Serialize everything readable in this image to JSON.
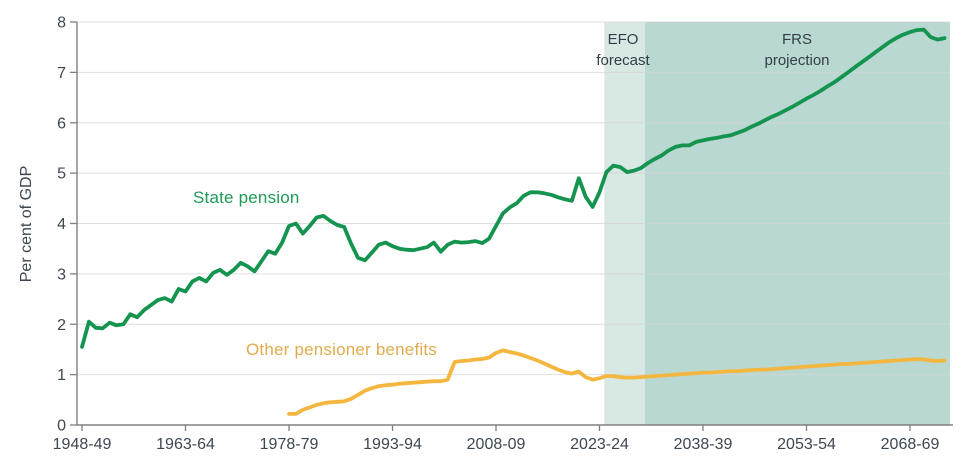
{
  "labels": {
    "y_axis_title": "Per cent of GDP",
    "state_pension": "State pension",
    "other_pensioner_benefits": "Other pensioner benefits",
    "efo_region": "EFO\nforecast",
    "frs_region": "FRS\nprojection"
  },
  "colors": {
    "state_pension_line": "#14944F",
    "state_pension_label": "#1F9A57",
    "other_benefits_line": "#F3B73F",
    "other_benefits_label": "#E0AC4D",
    "efo_shading": "#D8E8E3",
    "frs_shading": "#B9D8D2",
    "axis": "#808080",
    "gridline": "#D4D4D4",
    "text": "#3D4752",
    "region_label_text": "#333E48",
    "background": "#FFFFFF"
  },
  "chart_data": {
    "type": "line",
    "title": "",
    "xlabel": "",
    "ylabel": "Per cent of GDP",
    "ylim": [
      0,
      8
    ],
    "yticks": [
      0,
      1,
      2,
      3,
      4,
      5,
      6,
      7,
      8
    ],
    "grid": "horizontal",
    "legend_position": "inline-labels-on-chart",
    "x_unit": "UK fiscal year (first year of pair shown)",
    "xlim_years": [
      1948,
      2074.8
    ],
    "xticks": [
      {
        "year": 1948,
        "label": "1948-49"
      },
      {
        "year": 1963,
        "label": "1963-64"
      },
      {
        "year": 1978,
        "label": "1978-79"
      },
      {
        "year": 1993,
        "label": "1993-94"
      },
      {
        "year": 2008,
        "label": "2008-09"
      },
      {
        "year": 2023,
        "label": "2023-24"
      },
      {
        "year": 2038,
        "label": "2038-39"
      },
      {
        "year": 2053,
        "label": "2053-54"
      },
      {
        "year": 2068,
        "label": "2068-69"
      }
    ],
    "regions": [
      {
        "name": "EFO forecast",
        "from_year": 2023.7,
        "to_year": 2029.6,
        "color": "#D8E8E3"
      },
      {
        "name": "FRS projection",
        "from_year": 2029.6,
        "to_year": 2074.8,
        "color": "#B9D8D2"
      }
    ],
    "series": [
      {
        "name": "State pension",
        "color": "#14944F",
        "start_year": 1948,
        "values": [
          1.55,
          2.05,
          1.93,
          1.92,
          2.03,
          1.98,
          2.0,
          2.2,
          2.14,
          2.28,
          2.38,
          2.48,
          2.52,
          2.45,
          2.7,
          2.65,
          2.85,
          2.92,
          2.85,
          3.02,
          3.08,
          2.98,
          3.08,
          3.22,
          3.15,
          3.05,
          3.25,
          3.45,
          3.4,
          3.62,
          3.95,
          4.0,
          3.8,
          3.95,
          4.12,
          4.15,
          4.05,
          3.97,
          3.93,
          3.6,
          3.32,
          3.27,
          3.42,
          3.58,
          3.62,
          3.55,
          3.5,
          3.48,
          3.47,
          3.5,
          3.53,
          3.62,
          3.44,
          3.58,
          3.64,
          3.62,
          3.63,
          3.65,
          3.61,
          3.7,
          3.95,
          4.2,
          4.32,
          4.4,
          4.55,
          4.62,
          4.62,
          4.6,
          4.57,
          4.52,
          4.48,
          4.45,
          4.9,
          4.53,
          4.33,
          4.62,
          5.02,
          5.15,
          5.12,
          5.02,
          5.05,
          5.1,
          5.2,
          5.28,
          5.35,
          5.45,
          5.52,
          5.55,
          5.55,
          5.62,
          5.65,
          5.68,
          5.7,
          5.73,
          5.75,
          5.8,
          5.85,
          5.92,
          5.98,
          6.05,
          6.12,
          6.18,
          6.25,
          6.32,
          6.4,
          6.48,
          6.55,
          6.63,
          6.72,
          6.8,
          6.9,
          7.0,
          7.1,
          7.2,
          7.3,
          7.4,
          7.5,
          7.6,
          7.68,
          7.75,
          7.8,
          7.84,
          7.85,
          7.7,
          7.65,
          7.68
        ]
      },
      {
        "name": "Other pensioner benefits",
        "color": "#F3B73F",
        "start_year": 1978,
        "values": [
          0.22,
          0.22,
          0.3,
          0.35,
          0.4,
          0.43,
          0.45,
          0.46,
          0.47,
          0.52,
          0.6,
          0.68,
          0.73,
          0.77,
          0.79,
          0.8,
          0.82,
          0.83,
          0.84,
          0.85,
          0.86,
          0.87,
          0.87,
          0.9,
          1.25,
          1.27,
          1.28,
          1.3,
          1.31,
          1.34,
          1.43,
          1.48,
          1.45,
          1.42,
          1.38,
          1.33,
          1.28,
          1.22,
          1.16,
          1.1,
          1.05,
          1.02,
          1.06,
          0.95,
          0.9,
          0.93,
          0.97,
          0.97,
          0.95,
          0.94,
          0.94,
          0.95,
          0.96,
          0.97,
          0.98,
          0.99,
          1.0,
          1.01,
          1.02,
          1.03,
          1.04,
          1.04,
          1.05,
          1.06,
          1.07,
          1.07,
          1.08,
          1.09,
          1.1,
          1.1,
          1.11,
          1.12,
          1.13,
          1.14,
          1.15,
          1.16,
          1.17,
          1.18,
          1.19,
          1.2,
          1.21,
          1.21,
          1.22,
          1.23,
          1.24,
          1.25,
          1.26,
          1.27,
          1.28,
          1.29,
          1.3,
          1.31,
          1.3,
          1.28,
          1.27,
          1.28
        ]
      }
    ]
  }
}
